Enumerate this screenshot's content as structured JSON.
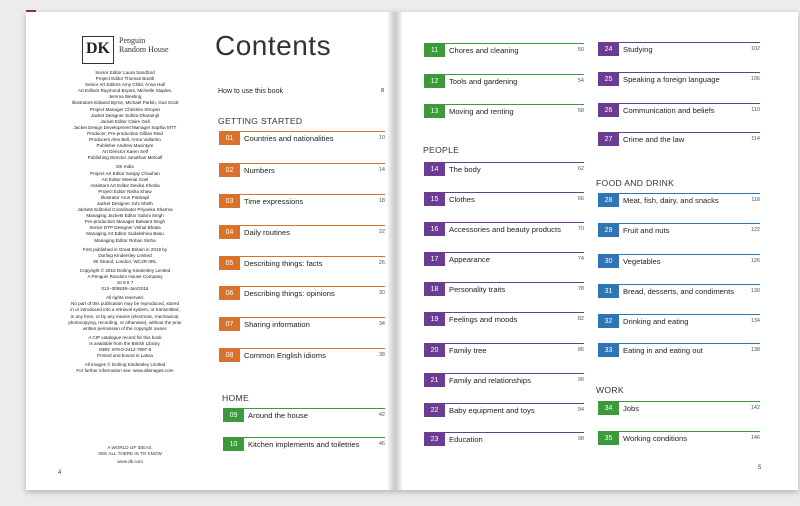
{
  "left_page": {
    "logo": {
      "mark": "DK",
      "publisher": "Penguin Random House"
    },
    "credits": [
      "Senior Editor Laura Sandford",
      "Project Editor Thomas Booth",
      "Senior Art Editors Amy Child, Anna Hall",
      "Art Editors Raymond Bryant, Michelle Staples,",
      "Jemma Westing",
      "Illustrators Edward Byrne, Michael Parkin, Gus Scott",
      "Project Manager Christine Stroyan",
      "Jacket Designer Suhita Dharamjit",
      "Jacket Editor Claire Gell",
      "Jacket Design Development Manager Sophia MTT",
      "Producer, Pre-production Gillian Reid",
      "Producers Alex Bell, Anna Vallarino",
      "Publisher Andrew Macintyre",
      "Art Director Karen Self",
      "Publishing Director Jonathan Metcalf",
      "",
      "DK India",
      "Project Art Editor Sanjay Chauhan",
      "Art Editor Meenal Goel",
      "Assistant Art Editor Devika Khosla",
      "Project Editor Nisha Shaw",
      "Illustrator Arun Pottirayil",
      "Jacket Designer Juhi Sheth",
      "Jackets Editorial Coordinator Priyanka Sharma",
      "Managing Jackets Editor Saloni Singh",
      "Pre-production Manager Balwant Singh",
      "Senior DTP Designer Vishal Bhatia",
      "Managing Art Editor Sudakshina Basu",
      "Managing Editor Rohan Sinha",
      "",
      "First published in Great Britain in 2018 by",
      "Dorling Kindersley Limited",
      "80 Strand, London, WC2R 0RL",
      "",
      "Copyright © 2018 Dorling Kindersley Limited",
      "A Penguin Random House Company",
      "10 9 8 7",
      "012–305538–Jan/2018",
      "",
      "All rights reserved.",
      "No part of this publication may be reproduced, stored",
      "in or introduced into a retrieval system, or transmitted,",
      "in any form, or by any means (electronic, mechanical,",
      "photocopying, recording, or otherwise), without the prior",
      "written permission of the copyright owner.",
      "",
      "A CIP catalogue record for this book",
      "is available from the British Library.",
      "ISBN: 978-0-2412-7997-6",
      "Printed and bound in Latvia",
      "",
      "All images © Dorling Kindersley Limited",
      "For further information see: www.dkimages.com"
    ],
    "footer": [
      "A WORLD OF IDEAS:",
      "SEE ALL THERE IS TO KNOW",
      "www.dk.com"
    ],
    "page_number": "4"
  },
  "contents": {
    "title": "Contents",
    "howto": {
      "label": "How to use this book",
      "page": "8"
    },
    "sections": {
      "getting_started": "GETTING STARTED",
      "home": "HOME",
      "people": "PEOPLE",
      "food": "FOOD AND DRINK",
      "work": "WORK"
    },
    "entries": [
      {
        "num": "01",
        "label": "Countries and nationalities",
        "page": "10",
        "color": "#d9722b"
      },
      {
        "num": "02",
        "label": "Numbers",
        "page": "14",
        "color": "#d9722b"
      },
      {
        "num": "03",
        "label": "Time expressions",
        "page": "18",
        "color": "#d9722b"
      },
      {
        "num": "04",
        "label": "Daily routines",
        "page": "22",
        "color": "#d9722b"
      },
      {
        "num": "05",
        "label": "Describing things: facts",
        "page": "26",
        "color": "#d9722b"
      },
      {
        "num": "06",
        "label": "Describing things: opinions",
        "page": "30",
        "color": "#d9722b"
      },
      {
        "num": "07",
        "label": "Sharing information",
        "page": "34",
        "color": "#d9722b"
      },
      {
        "num": "08",
        "label": "Common English idioms",
        "page": "38",
        "color": "#d9722b"
      },
      {
        "num": "09",
        "label": "Around the house",
        "page": "42",
        "color": "#3d9a3b"
      },
      {
        "num": "10",
        "label": "Kitchen implements and toiletries",
        "page": "46",
        "color": "#3d9a3b"
      },
      {
        "num": "11",
        "label": "Chores and cleaning",
        "page": "50",
        "color": "#3d9a3b"
      },
      {
        "num": "12",
        "label": "Tools and gardening",
        "page": "54",
        "color": "#3d9a3b"
      },
      {
        "num": "13",
        "label": "Moving and renting",
        "page": "58",
        "color": "#3d9a3b"
      },
      {
        "num": "14",
        "label": "The body",
        "page": "62",
        "color": "#6b3d92"
      },
      {
        "num": "15",
        "label": "Clothes",
        "page": "66",
        "color": "#6b3d92"
      },
      {
        "num": "16",
        "label": "Accessories and beauty products",
        "page": "70",
        "color": "#6b3d92"
      },
      {
        "num": "17",
        "label": "Appearance",
        "page": "74",
        "color": "#6b3d92"
      },
      {
        "num": "18",
        "label": "Personality traits",
        "page": "78",
        "color": "#6b3d92"
      },
      {
        "num": "19",
        "label": "Feelings and moods",
        "page": "82",
        "color": "#6b3d92"
      },
      {
        "num": "20",
        "label": "Family tree",
        "page": "86",
        "color": "#6b3d92"
      },
      {
        "num": "21",
        "label": "Family and relationships",
        "page": "90",
        "color": "#6b3d92"
      },
      {
        "num": "22",
        "label": "Baby equipment and toys",
        "page": "94",
        "color": "#6b3d92"
      },
      {
        "num": "23",
        "label": "Education",
        "page": "98",
        "color": "#6b3d92"
      },
      {
        "num": "24",
        "label": "Studying",
        "page": "102",
        "color": "#6b3d92"
      },
      {
        "num": "25",
        "label": "Speaking a foreign language",
        "page": "106",
        "color": "#6b3d92"
      },
      {
        "num": "26",
        "label": "Communication and beliefs",
        "page": "110",
        "color": "#6b3d92"
      },
      {
        "num": "27",
        "label": "Crime and the law",
        "page": "114",
        "color": "#6b3d92"
      },
      {
        "num": "28",
        "label": "Meat, fish, dairy, and snacks",
        "page": "118",
        "color": "#2f74b5"
      },
      {
        "num": "29",
        "label": "Fruit and nuts",
        "page": "122",
        "color": "#2f74b5"
      },
      {
        "num": "30",
        "label": "Vegetables",
        "page": "126",
        "color": "#2f74b5"
      },
      {
        "num": "31",
        "label": "Bread, desserts, and condiments",
        "page": "130",
        "color": "#2f74b5"
      },
      {
        "num": "32",
        "label": "Drinking and eating",
        "page": "134",
        "color": "#2f74b5"
      },
      {
        "num": "33",
        "label": "Eating in and eating out",
        "page": "138",
        "color": "#2f74b5"
      },
      {
        "num": "34",
        "label": "Jobs",
        "page": "142",
        "color": "#3d9a3b"
      },
      {
        "num": "35",
        "label": "Working conditions",
        "page": "146",
        "color": "#3d9a3b"
      }
    ],
    "page_number": "5"
  }
}
